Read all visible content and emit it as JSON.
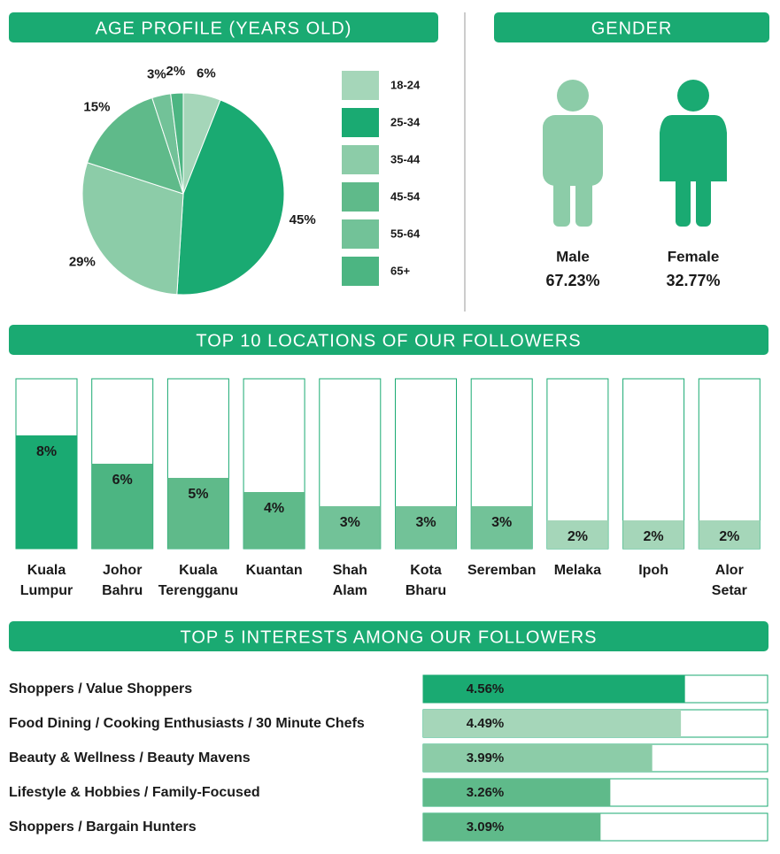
{
  "chart_data": [
    {
      "type": "pie",
      "title": "AGE PROFILE (YEARS OLD)",
      "categories": [
        "18-24",
        "25-34",
        "35-44",
        "45-54",
        "55-64",
        "65+"
      ],
      "values": [
        6,
        45,
        29,
        15,
        3,
        2
      ],
      "value_labels": [
        "6%",
        "45%",
        "29%",
        "15%",
        "3%",
        "2%"
      ],
      "colors": [
        "#a5d6b9",
        "#1aaa72",
        "#8ccca8",
        "#5fba8a",
        "#72c298",
        "#4cb582"
      ]
    },
    {
      "type": "pictogram",
      "title": "GENDER",
      "categories": [
        "Male",
        "Female"
      ],
      "values": [
        67.23,
        32.77
      ],
      "value_labels": [
        "67.23%",
        "32.77%"
      ],
      "colors": [
        "#8ccca8",
        "#1aaa72"
      ]
    },
    {
      "type": "bar",
      "title": "TOP 10 LOCATIONS OF OUR FOLLOWERS",
      "categories": [
        "Kuala Lumpur",
        "Johor Bahru",
        "Kuala Terengganu",
        "Kuantan",
        "Shah Alam",
        "Kota Bharu",
        "Seremban",
        "Melaka",
        "Ipoh",
        "Alor Setar"
      ],
      "values": [
        8,
        6,
        5,
        4,
        3,
        3,
        3,
        2,
        2,
        2
      ],
      "value_labels": [
        "8%",
        "6%",
        "5%",
        "4%",
        "3%",
        "3%",
        "3%",
        "2%",
        "2%",
        "2%"
      ],
      "colors": [
        "#1aaa72",
        "#4cb582",
        "#5fba8a",
        "#5fba8a",
        "#72c298",
        "#72c298",
        "#72c298",
        "#a5d6b9",
        "#a5d6b9",
        "#a5d6b9"
      ],
      "ylim": [
        0,
        12
      ]
    },
    {
      "type": "hbar",
      "title": "TOP 5 INTERESTS AMONG OUR FOLLOWERS",
      "categories": [
        "Shoppers / Value Shoppers",
        "Food Dining / Cooking Enthusiasts / 30 Minute Chefs",
        "Beauty & Wellness / Beauty Mavens",
        "Lifestyle & Hobbies / Family-Focused",
        "Shoppers / Bargain Hunters"
      ],
      "values": [
        4.56,
        4.49,
        3.99,
        3.26,
        3.09
      ],
      "value_labels": [
        "4.56%",
        "4.49%",
        "3.99%",
        "3.26%",
        "3.09%"
      ],
      "colors": [
        "#1aaa72",
        "#a5d6b9",
        "#8ccca8",
        "#5fba8a",
        "#5fba8a"
      ],
      "xlim": [
        0,
        6
      ]
    }
  ]
}
